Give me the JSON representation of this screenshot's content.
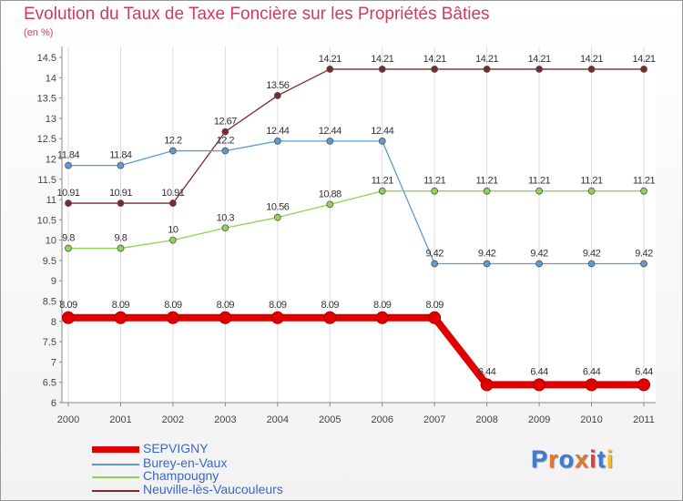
{
  "title": "Evolution du Taux de Taxe Foncière sur les Propriétés Bâties",
  "subtitle": "(en %)",
  "logo": {
    "text": "Proxiti",
    "colors": [
      "#3b7bd9",
      "#e0792a",
      "#3b7bd9",
      "#e0792a",
      "#e04040",
      "#3b7bd9",
      "#f0c020"
    ]
  },
  "chart_data": {
    "type": "line",
    "title": "Evolution du Taux de Taxe Foncière sur les Propriétés Bâties",
    "ylabel": "(en %)",
    "xlabel": "",
    "x": [
      "2000",
      "2001",
      "2002",
      "2003",
      "2004",
      "2005",
      "2006",
      "2007",
      "2008",
      "2009",
      "2010",
      "2011"
    ],
    "ylim": [
      6,
      14.5
    ],
    "yticks": [
      "6",
      "6.5",
      "7",
      "7.5",
      "8",
      "8.5",
      "9",
      "9.5",
      "10",
      "10.5",
      "11",
      "11.5",
      "12",
      "12.5",
      "13",
      "13.5",
      "14",
      "14.5"
    ],
    "legend_position": "bottom-left",
    "series": [
      {
        "name": "SEPVIGNY",
        "color": "#e00000",
        "width": 8,
        "values": [
          8.09,
          8.09,
          8.09,
          8.09,
          8.09,
          8.09,
          8.09,
          8.09,
          6.44,
          6.44,
          6.44,
          6.44
        ],
        "labels": [
          "8.09",
          "8.09",
          "8.09",
          "8.09",
          "8.09",
          "8.09",
          "8.09",
          "8.09",
          "6.44",
          "6.44",
          "6.44",
          "6.44"
        ]
      },
      {
        "name": "Burey-en-Vaux",
        "color": "#5b9bd0",
        "width": 1.3,
        "values": [
          11.84,
          11.84,
          12.2,
          12.2,
          12.44,
          12.44,
          12.44,
          9.42,
          9.42,
          9.42,
          9.42,
          9.42
        ],
        "labels": [
          "11.84",
          "11.84",
          "12.2",
          "12.2",
          "12.44",
          "12.44",
          "12.44",
          "9.42",
          "9.42",
          "9.42",
          "9.42",
          "9.42"
        ]
      },
      {
        "name": "Champougny",
        "color": "#8ed352",
        "width": 1.3,
        "values": [
          9.8,
          9.8,
          10,
          10.3,
          10.56,
          10.88,
          11.21,
          11.21,
          11.21,
          11.21,
          11.21,
          11.21
        ],
        "labels": [
          "9.8",
          "9.8",
          "10",
          "10.3",
          "10.56",
          "10.88",
          "11.21",
          "11.21",
          "11.21",
          "11.21",
          "11.21",
          "11.21"
        ]
      },
      {
        "name": "Neuville-lès-Vaucouleurs",
        "color": "#7a2a2a",
        "width": 1.3,
        "values": [
          10.91,
          10.91,
          10.91,
          12.67,
          13.56,
          14.21,
          14.21,
          14.21,
          14.21,
          14.21,
          14.21,
          14.21
        ],
        "labels": [
          "10.91",
          "10.91",
          "10.91",
          "12.67",
          "13.56",
          "14.21",
          "14.21",
          "14.21",
          "14.21",
          "14.21",
          "14.21",
          "14.21"
        ]
      }
    ]
  }
}
